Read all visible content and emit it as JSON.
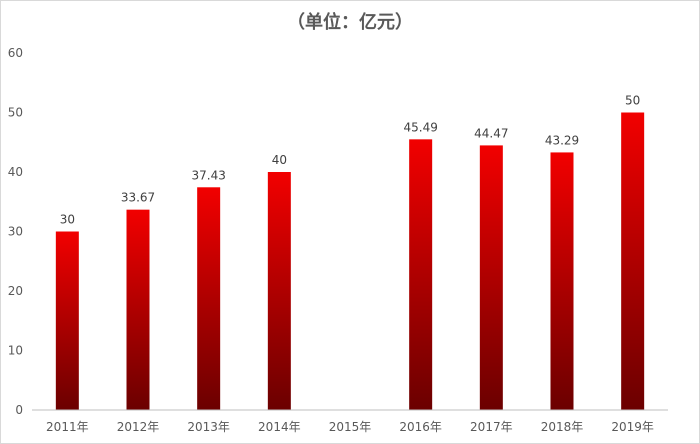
{
  "chart_data": {
    "type": "bar",
    "title": "（单位：亿元）",
    "categories": [
      "2011年",
      "2012年",
      "2013年",
      "2014年",
      "2015年",
      "2016年",
      "2017年",
      "2018年",
      "2019年"
    ],
    "values": [
      30,
      33.67,
      37.43,
      40,
      null,
      45.49,
      44.47,
      43.29,
      50
    ],
    "data_labels": [
      "30",
      "33.67",
      "37.43",
      "40",
      "",
      "45.49",
      "44.47",
      "43.29",
      "50"
    ],
    "ylim": [
      0,
      60
    ],
    "yticks": [
      0,
      10,
      20,
      30,
      40,
      50,
      60
    ],
    "grid": false,
    "legend": "none",
    "colors": {
      "bar_top": "#f20000",
      "bar_bottom": "#6b0000",
      "axis": "#bfbfbf",
      "text": "#595959"
    }
  }
}
